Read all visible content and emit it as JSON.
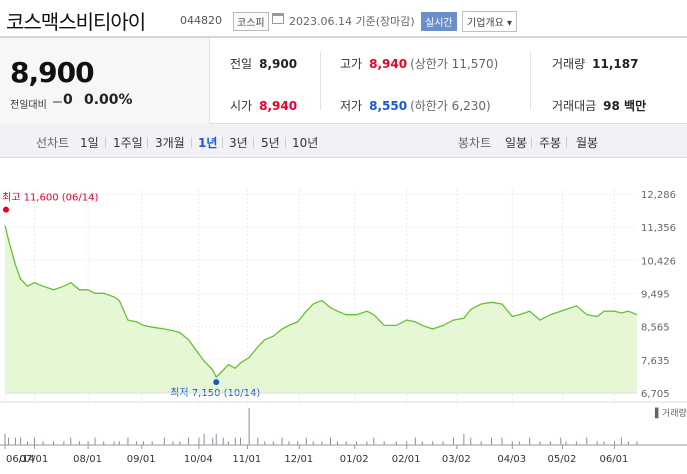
{
  "header": {
    "name": "코스맥스비티아이",
    "code": "044820",
    "market": "코스피",
    "date": "2023.06.14 기준(장마감)",
    "live_label": "실시간",
    "corp_label": "기업개요 ▾"
  },
  "price": {
    "current": "8,900",
    "change_label": "전일대비",
    "change_value": "0",
    "change_pct": "0.00%"
  },
  "stats": {
    "prev_label": "전일",
    "prev_value": "8,900",
    "open_label": "시가",
    "open_value": "8,940",
    "high_label": "고가",
    "high_value": "8,940",
    "upper_limit": "(상한가 11,570)",
    "low_label": "저가",
    "low_value": "8,550",
    "lower_limit": "(하한가 6,230)",
    "volume_label": "거래량",
    "volume_value": "11,187",
    "amount_label": "거래대금",
    "amount_value": "98 백만"
  },
  "tabs": {
    "line_label": "선차트",
    "line": [
      "1일",
      "1주일",
      "3개월",
      "1년",
      "3년",
      "5년",
      "10년"
    ],
    "active": "1년",
    "candle_label": "봉차트",
    "candle": [
      "일봉",
      "주봉",
      "월봉"
    ]
  },
  "colors": {
    "up": "#e8002b",
    "down": "#1b58d6",
    "line": "#66c133",
    "area": "#e6f7d6"
  },
  "chart_data": {
    "type": "area",
    "title": "",
    "xlabel": "",
    "ylabel": "",
    "ylim": [
      6705,
      12286
    ],
    "y_ticks": [
      "12,286",
      "11,356",
      "10,426",
      "9,495",
      "8,565",
      "7,635",
      "6,705"
    ],
    "x_ticks": [
      "06/14",
      "07/01",
      "08/01",
      "09/01",
      "10/04",
      "11/01",
      "12/01",
      "01/02",
      "02/01",
      "03/02",
      "04/03",
      "05/02",
      "06/01"
    ],
    "high_label": "최고 11,600 (06/14)",
    "low_label": "최저 7,150 (10/14)",
    "volume_label": "거래량",
    "series": [
      {
        "x": [
          "2022-06-14",
          "2022-06-16",
          "2022-06-20",
          "2022-06-23",
          "2022-06-27",
          "2022-07-01",
          "2022-07-06",
          "2022-07-12",
          "2022-07-18",
          "2022-07-22",
          "2022-07-27",
          "2022-08-01",
          "2022-08-05",
          "2022-08-10",
          "2022-08-16",
          "2022-08-19",
          "2022-08-24",
          "2022-08-29",
          "2022-09-02",
          "2022-09-07",
          "2022-09-14",
          "2022-09-19",
          "2022-09-23",
          "2022-09-28",
          "2022-10-04",
          "2022-10-07",
          "2022-10-12",
          "2022-10-14",
          "2022-10-18",
          "2022-10-21",
          "2022-10-25",
          "2022-10-28",
          "2022-11-02",
          "2022-11-07",
          "2022-11-11",
          "2022-11-16",
          "2022-11-21",
          "2022-11-25",
          "2022-11-30",
          "2022-12-05",
          "2022-12-09",
          "2022-12-14",
          "2022-12-19",
          "2022-12-23",
          "2022-12-28",
          "2023-01-03",
          "2023-01-09",
          "2023-01-13",
          "2023-01-19",
          "2023-01-26",
          "2023-02-01",
          "2023-02-06",
          "2023-02-10",
          "2023-02-16",
          "2023-02-22",
          "2023-02-28",
          "2023-03-06",
          "2023-03-10",
          "2023-03-16",
          "2023-03-22",
          "2023-03-28",
          "2023-04-03",
          "2023-04-07",
          "2023-04-13",
          "2023-04-19",
          "2023-04-25",
          "2023-05-01",
          "2023-05-04",
          "2023-05-10",
          "2023-05-16",
          "2023-05-22",
          "2023-05-26",
          "2023-06-01",
          "2023-06-05",
          "2023-06-09",
          "2023-06-14"
        ],
        "y": [
          11400,
          11000,
          10300,
          9900,
          9700,
          9800,
          9700,
          9600,
          9700,
          9800,
          9600,
          9600,
          9500,
          9500,
          9400,
          9300,
          8750,
          8700,
          8600,
          8550,
          8500,
          8450,
          8400,
          8200,
          7800,
          7600,
          7350,
          7150,
          7350,
          7500,
          7400,
          7550,
          7700,
          8000,
          8200,
          8300,
          8500,
          8600,
          8700,
          9000,
          9200,
          9300,
          9100,
          9000,
          8900,
          8900,
          9000,
          8900,
          8600,
          8600,
          8750,
          8700,
          8600,
          8500,
          8600,
          8750,
          8800,
          9050,
          9200,
          9250,
          9200,
          8850,
          8900,
          9000,
          8750,
          8900,
          9000,
          9050,
          9150,
          8900,
          8850,
          9000,
          9000,
          8950,
          9000,
          8900
        ]
      }
    ],
    "volume": [
      3,
      2,
      2,
      2,
      1,
      2,
      1,
      1,
      1,
      2,
      1,
      1,
      2,
      1,
      1,
      1,
      2,
      1,
      1,
      1,
      2,
      1,
      1,
      2,
      2,
      3,
      2,
      3,
      2,
      1,
      2,
      2,
      10,
      2,
      1,
      1,
      2,
      1,
      1,
      2,
      1,
      1,
      2,
      1,
      1,
      1,
      1,
      2,
      1,
      1,
      1,
      2,
      1,
      1,
      1,
      2,
      3,
      2,
      1,
      2,
      2,
      1,
      1,
      2,
      1,
      1,
      2,
      1,
      1,
      2,
      1,
      1,
      1,
      2,
      1,
      1
    ]
  }
}
